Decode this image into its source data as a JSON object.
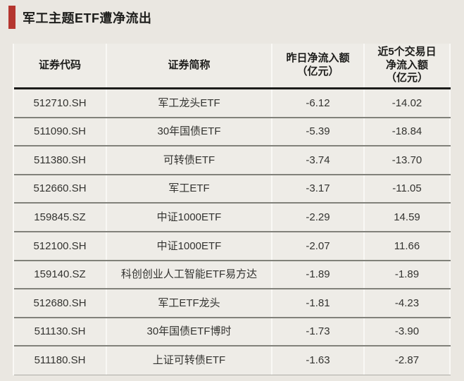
{
  "page": {
    "background_color": "#eae7e1",
    "accent_red": "#b5362f",
    "row_divider_color": "#81817a",
    "header_divider_color": "#1c1c1a",
    "column_divider_color": "#f9f8f5"
  },
  "header": {
    "title": "军工主题ETF遭净流出"
  },
  "table": {
    "columns": [
      {
        "label": "证券代码"
      },
      {
        "label": "证券简称"
      },
      {
        "label": "昨日净流入额\n（亿元）"
      },
      {
        "label": "近5个交易日\n净流入额\n（亿元）"
      }
    ],
    "rows": [
      {
        "code": "512710.SH",
        "name": "军工龙头ETF",
        "yesterday": "-6.12",
        "five_day": "-14.02"
      },
      {
        "code": "511090.SH",
        "name": "30年国债ETF",
        "yesterday": "-5.39",
        "five_day": "-18.84"
      },
      {
        "code": "511380.SH",
        "name": "可转债ETF",
        "yesterday": "-3.74",
        "five_day": "-13.70"
      },
      {
        "code": "512660.SH",
        "name": "军工ETF",
        "yesterday": "-3.17",
        "five_day": "-11.05"
      },
      {
        "code": "159845.SZ",
        "name": "中证1000ETF",
        "yesterday": "-2.29",
        "five_day": "14.59"
      },
      {
        "code": "512100.SH",
        "name": "中证1000ETF",
        "yesterday": "-2.07",
        "five_day": "11.66"
      },
      {
        "code": "159140.SZ",
        "name": "科创创业人工智能ETF易方达",
        "yesterday": "-1.89",
        "five_day": "-1.89"
      },
      {
        "code": "512680.SH",
        "name": "军工ETF龙头",
        "yesterday": "-1.81",
        "five_day": "-4.23"
      },
      {
        "code": "511130.SH",
        "name": "30年国债ETF博时",
        "yesterday": "-1.73",
        "five_day": "-3.90"
      },
      {
        "code": "511180.SH",
        "name": "上证可转债ETF",
        "yesterday": "-1.63",
        "five_day": "-2.87"
      }
    ]
  },
  "chart_data": {
    "type": "table",
    "title": "军工主题ETF遭净流出",
    "columns": [
      "证券代码",
      "证券简称",
      "昨日净流入额（亿元）",
      "近5个交易日净流入额（亿元）"
    ],
    "rows": [
      [
        "512710.SH",
        "军工龙头ETF",
        -6.12,
        -14.02
      ],
      [
        "511090.SH",
        "30年国债ETF",
        -5.39,
        -18.84
      ],
      [
        "511380.SH",
        "可转债ETF",
        -3.74,
        -13.7
      ],
      [
        "512660.SH",
        "军工ETF",
        -3.17,
        -11.05
      ],
      [
        "159845.SZ",
        "中证1000ETF",
        -2.29,
        14.59
      ],
      [
        "512100.SH",
        "中证1000ETF",
        -2.07,
        11.66
      ],
      [
        "159140.SZ",
        "科创创业人工智能ETF易方达",
        -1.89,
        -1.89
      ],
      [
        "512680.SH",
        "军工ETF龙头",
        -1.81,
        -4.23
      ],
      [
        "511130.SH",
        "30年国债ETF博时",
        -1.73,
        -3.9
      ],
      [
        "511180.SH",
        "上证可转债ETF",
        -1.63,
        -2.87
      ]
    ]
  }
}
